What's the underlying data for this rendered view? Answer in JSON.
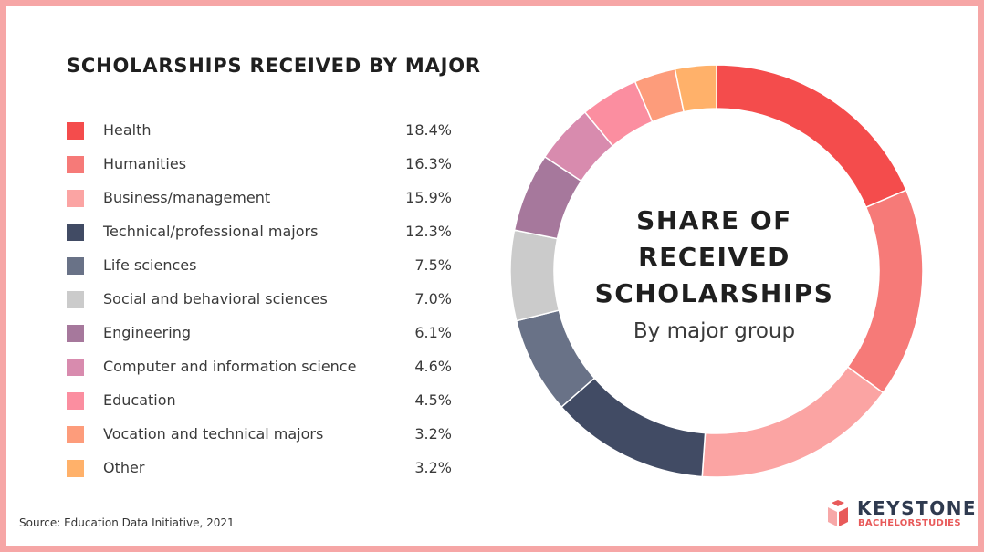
{
  "chart_data": {
    "type": "pie",
    "title": "SCHOLARSHIPS RECEIVED BY MAJOR",
    "center_title_lines": [
      "SHARE OF",
      "RECEIVED",
      "SCHOLARSHIPS"
    ],
    "center_subtitle": "By major group",
    "slices": [
      {
        "label": "Health",
        "value": 18.4,
        "display": "18.4%",
        "color": "#f44c4c"
      },
      {
        "label": "Humanities",
        "value": 16.3,
        "display": "16.3%",
        "color": "#f67a78"
      },
      {
        "label": "Business/management",
        "value": 15.9,
        "display": "15.9%",
        "color": "#fba4a3"
      },
      {
        "label": "Technical/professional majors",
        "value": 12.3,
        "display": "12.3%",
        "color": "#414b64"
      },
      {
        "label": "Life sciences",
        "value": 7.5,
        "display": "7.5%",
        "color": "#697287"
      },
      {
        "label": "Social and behavioral sciences",
        "value": 7.0,
        "display": "7.0%",
        "color": "#cbcbcb"
      },
      {
        "label": "Engineering",
        "value": 6.1,
        "display": "6.1%",
        "color": "#a6789c"
      },
      {
        "label": "Computer and information science",
        "value": 4.6,
        "display": "4.6%",
        "color": "#d88bae"
      },
      {
        "label": "Education",
        "value": 4.5,
        "display": "4.5%",
        "color": "#fb8ea0"
      },
      {
        "label": "Vocation and technical majors",
        "value": 3.2,
        "display": "3.2%",
        "color": "#fd9c7b"
      },
      {
        "label": "Other",
        "value": 3.2,
        "display": "3.2%",
        "color": "#ffb16a"
      }
    ]
  },
  "source": "Source: Education Data Initiative, 2021",
  "brand": {
    "name": "KEYSTONE",
    "tagline": "BACHELORSTUDIES",
    "icon": "keystone-cube-icon",
    "colors": {
      "dark": "#2f3a4f",
      "accent": "#e85a5a",
      "light": "#f7a8a8"
    }
  },
  "frame_color": "#f6a6a6"
}
